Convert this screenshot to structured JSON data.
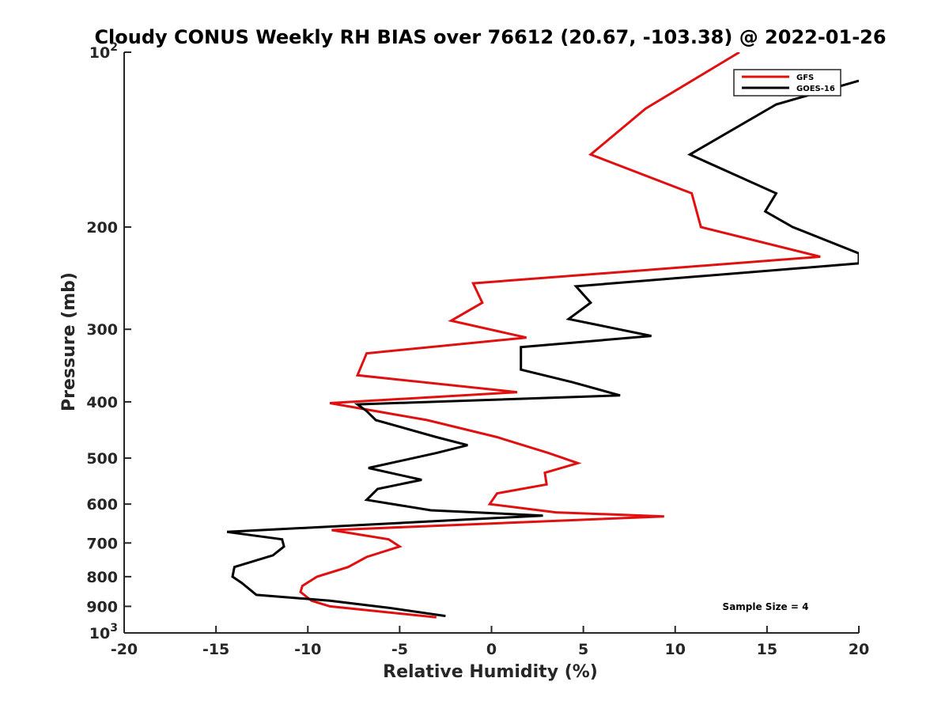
{
  "chart_data": {
    "type": "line",
    "title": "Cloudy CONUS Weekly RH BIAS over 76612 (20.67, -103.38) @ 2022-01-26",
    "xlabel": "Relative Humidity (%)",
    "ylabel": "Pressure (mb)",
    "xlim": [
      -20,
      20
    ],
    "ylim": [
      100,
      1000
    ],
    "yscale": "log",
    "y_reversed": true,
    "grid": false,
    "legend_location": "top-right",
    "x_ticks": [
      {
        "value": -20,
        "label": "-20"
      },
      {
        "value": -15,
        "label": "-15"
      },
      {
        "value": -10,
        "label": "-10"
      },
      {
        "value": -5,
        "label": "-5"
      },
      {
        "value": 0,
        "label": "0"
      },
      {
        "value": 5,
        "label": "5"
      },
      {
        "value": 10,
        "label": "10"
      },
      {
        "value": 15,
        "label": "15"
      },
      {
        "value": 20,
        "label": "20"
      }
    ],
    "y_ticks": [
      {
        "value": 100,
        "base": "10",
        "exp": "2"
      },
      {
        "value": 200,
        "label": "200"
      },
      {
        "value": 300,
        "label": "300"
      },
      {
        "value": 400,
        "label": "400"
      },
      {
        "value": 500,
        "label": "500"
      },
      {
        "value": 600,
        "label": "600"
      },
      {
        "value": 700,
        "label": "700"
      },
      {
        "value": 800,
        "label": "800"
      },
      {
        "value": 900,
        "label": "900"
      },
      {
        "value": 1000,
        "base": "10",
        "exp": "3"
      }
    ],
    "series": [
      {
        "name": "GFS",
        "color": "#e01010",
        "points": [
          [
            13.5,
            100
          ],
          [
            8.4,
            125
          ],
          [
            5.4,
            150
          ],
          [
            10.9,
            175
          ],
          [
            11.4,
            200
          ],
          [
            17.9,
            225
          ],
          [
            -1.0,
            250
          ],
          [
            -0.5,
            270
          ],
          [
            -2.2,
            290
          ],
          [
            1.9,
            310
          ],
          [
            -6.8,
            330
          ],
          [
            -7.3,
            360
          ],
          [
            1.4,
            385
          ],
          [
            -8.8,
            402
          ],
          [
            -3.5,
            430
          ],
          [
            0.3,
            460
          ],
          [
            3.1,
            490
          ],
          [
            4.7,
            510
          ],
          [
            2.9,
            530
          ],
          [
            3.0,
            555
          ],
          [
            0.3,
            575
          ],
          [
            -0.1,
            600
          ],
          [
            3.5,
            620
          ],
          [
            9.4,
            630
          ],
          [
            -8.7,
            665
          ],
          [
            -5.6,
            690
          ],
          [
            -5.0,
            710
          ],
          [
            -6.8,
            740
          ],
          [
            -7.8,
            770
          ],
          [
            -9.5,
            800
          ],
          [
            -10.3,
            830
          ],
          [
            -10.4,
            850
          ],
          [
            -9.8,
            880
          ],
          [
            -8.8,
            900
          ],
          [
            -3.0,
            940
          ]
        ]
      },
      {
        "name": "GOES-16",
        "color": "#000000",
        "points": [
          [
            20.0,
            112
          ],
          [
            15.5,
            123
          ],
          [
            10.8,
            150
          ],
          [
            15.5,
            175
          ],
          [
            14.9,
            188
          ],
          [
            16.4,
            200
          ],
          [
            20.0,
            222
          ],
          [
            20.0,
            231
          ],
          [
            4.6,
            253
          ],
          [
            5.4,
            270
          ],
          [
            4.2,
            288
          ],
          [
            8.7,
            308
          ],
          [
            1.6,
            322
          ],
          [
            1.6,
            352
          ],
          [
            4.4,
            370
          ],
          [
            7.0,
            390
          ],
          [
            -7.3,
            404
          ],
          [
            -6.8,
            415
          ],
          [
            -6.3,
            430
          ],
          [
            -3.0,
            460
          ],
          [
            -1.3,
            475
          ],
          [
            -3.0,
            490
          ],
          [
            -6.7,
            520
          ],
          [
            -3.8,
            545
          ],
          [
            -6.2,
            565
          ],
          [
            -6.8,
            590
          ],
          [
            -3.3,
            615
          ],
          [
            2.8,
            628
          ],
          [
            -14.4,
            670
          ],
          [
            -11.4,
            690
          ],
          [
            -11.3,
            710
          ],
          [
            -11.9,
            735
          ],
          [
            -14.0,
            770
          ],
          [
            -14.1,
            800
          ],
          [
            -13.6,
            820
          ],
          [
            -12.8,
            860
          ],
          [
            -8.8,
            880
          ],
          [
            -5.6,
            905
          ],
          [
            -2.5,
            935
          ]
        ]
      }
    ],
    "legend": [
      {
        "label": "GFS",
        "color": "#e01010"
      },
      {
        "label": "GOES-16",
        "color": "#000000"
      }
    ],
    "annotations": [
      {
        "text": "Sample Size = 4"
      }
    ]
  }
}
